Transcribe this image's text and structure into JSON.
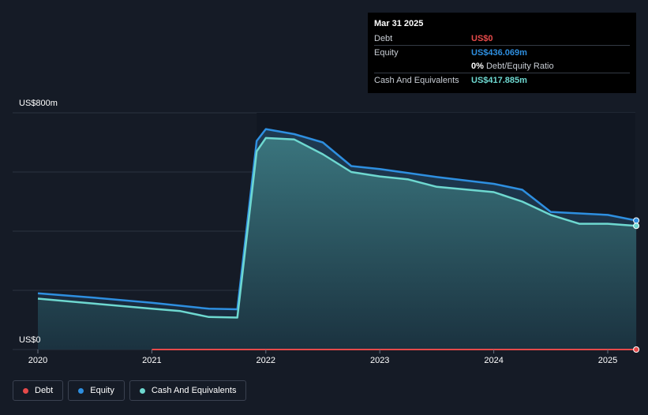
{
  "tooltip": {
    "date": "Mar 31 2025",
    "rows": [
      {
        "label": "Debt",
        "value": "US$0",
        "color": "#e64a4a"
      },
      {
        "label": "Equity",
        "value": "US$436.069m",
        "color": "#2e8fe0"
      },
      {
        "label": "",
        "value": "0%",
        "suffix": "Debt/Equity Ratio",
        "color": "#ffffff"
      },
      {
        "label": "Cash And Equivalents",
        "value": "US$417.885m",
        "color": "#6ed8d0"
      }
    ]
  },
  "colors": {
    "debt": "#e64a4a",
    "equity": "#2e8fe0",
    "cash": "#6ed8d0",
    "background": "#151b26",
    "grid": "#2c3340"
  },
  "legend": {
    "debt": "Debt",
    "equity": "Equity",
    "cash": "Cash And Equivalents"
  },
  "chart_data": {
    "type": "area",
    "ylim": [
      0,
      800
    ],
    "y_tick_labels": {
      "top": "US$800m",
      "bottom": "US$0"
    },
    "x_ticks": [
      "2020",
      "2021",
      "2022",
      "2023",
      "2024",
      "2025"
    ],
    "xlim": [
      2019.98,
      2025.25
    ],
    "grid": true,
    "series": [
      {
        "name": "Debt",
        "points": [
          [
            2021.0,
            0
          ],
          [
            2025.25,
            0
          ]
        ]
      },
      {
        "name": "Equity",
        "points": [
          [
            2020.0,
            190
          ],
          [
            2020.5,
            175
          ],
          [
            2021.0,
            158
          ],
          [
            2021.5,
            138
          ],
          [
            2021.75,
            136
          ],
          [
            2021.92,
            705
          ],
          [
            2022.0,
            745
          ],
          [
            2022.25,
            728
          ],
          [
            2022.5,
            700
          ],
          [
            2022.75,
            620
          ],
          [
            2023.0,
            610
          ],
          [
            2023.5,
            583
          ],
          [
            2024.0,
            560
          ],
          [
            2024.25,
            540
          ],
          [
            2024.5,
            465
          ],
          [
            2025.0,
            455
          ],
          [
            2025.25,
            436.069
          ]
        ]
      },
      {
        "name": "Cash And Equivalents",
        "points": [
          [
            2020.0,
            172
          ],
          [
            2020.5,
            155
          ],
          [
            2021.0,
            138
          ],
          [
            2021.25,
            130
          ],
          [
            2021.5,
            110
          ],
          [
            2021.75,
            108
          ],
          [
            2021.92,
            670
          ],
          [
            2022.0,
            715
          ],
          [
            2022.25,
            710
          ],
          [
            2022.5,
            660
          ],
          [
            2022.75,
            600
          ],
          [
            2023.0,
            585
          ],
          [
            2023.25,
            575
          ],
          [
            2023.5,
            550
          ],
          [
            2024.0,
            532
          ],
          [
            2024.25,
            500
          ],
          [
            2024.5,
            455
          ],
          [
            2024.75,
            425
          ],
          [
            2025.0,
            425
          ],
          [
            2025.25,
            417.885
          ]
        ]
      }
    ]
  }
}
